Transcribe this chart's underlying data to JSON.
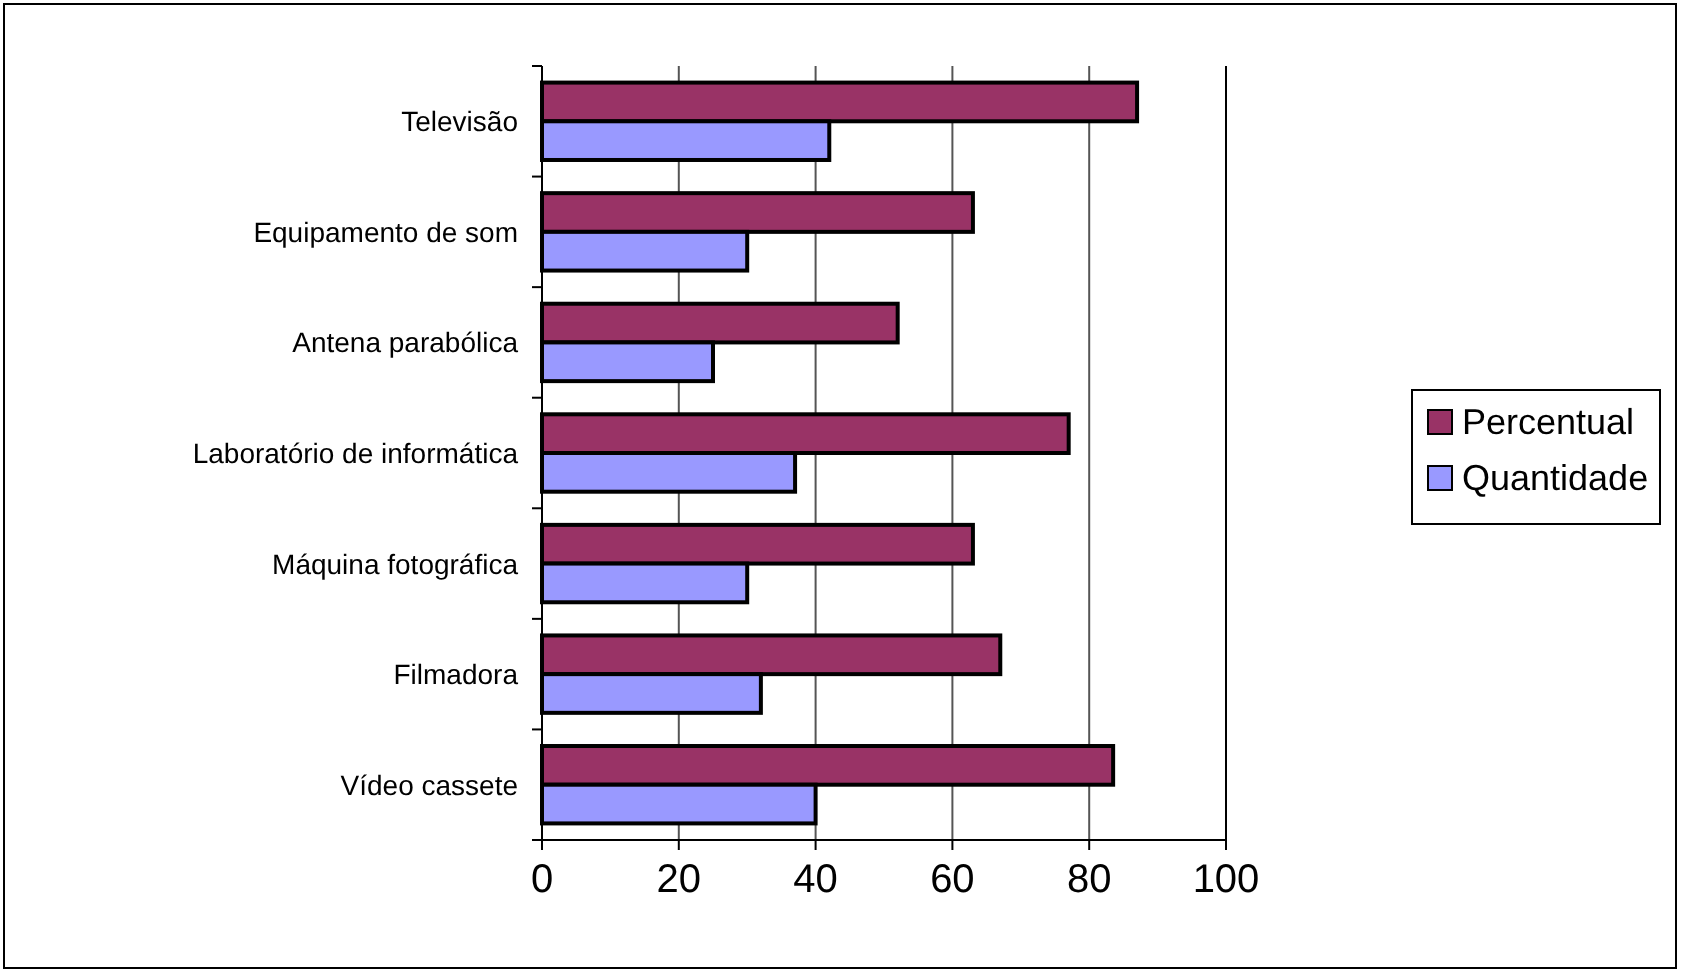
{
  "chart_data": {
    "type": "bar",
    "orientation": "horizontal",
    "categories": [
      "Televisão",
      "Equipamento de som",
      "Antena parabólica",
      "Laboratório de informática",
      "Máquina fotográfica",
      "Filmadora",
      "Vídeo cassete"
    ],
    "series": [
      {
        "name": "Percentual",
        "color": "#993366",
        "values": [
          87,
          63,
          52,
          77,
          63,
          67,
          83.5
        ]
      },
      {
        "name": "Quantidade",
        "color": "#9999ff",
        "values": [
          42,
          30,
          25,
          37,
          30,
          32,
          40
        ]
      }
    ],
    "xlim": [
      0,
      100
    ],
    "xticks": [
      0,
      20,
      40,
      60,
      80,
      100
    ],
    "grid": "x",
    "legend": "right"
  }
}
